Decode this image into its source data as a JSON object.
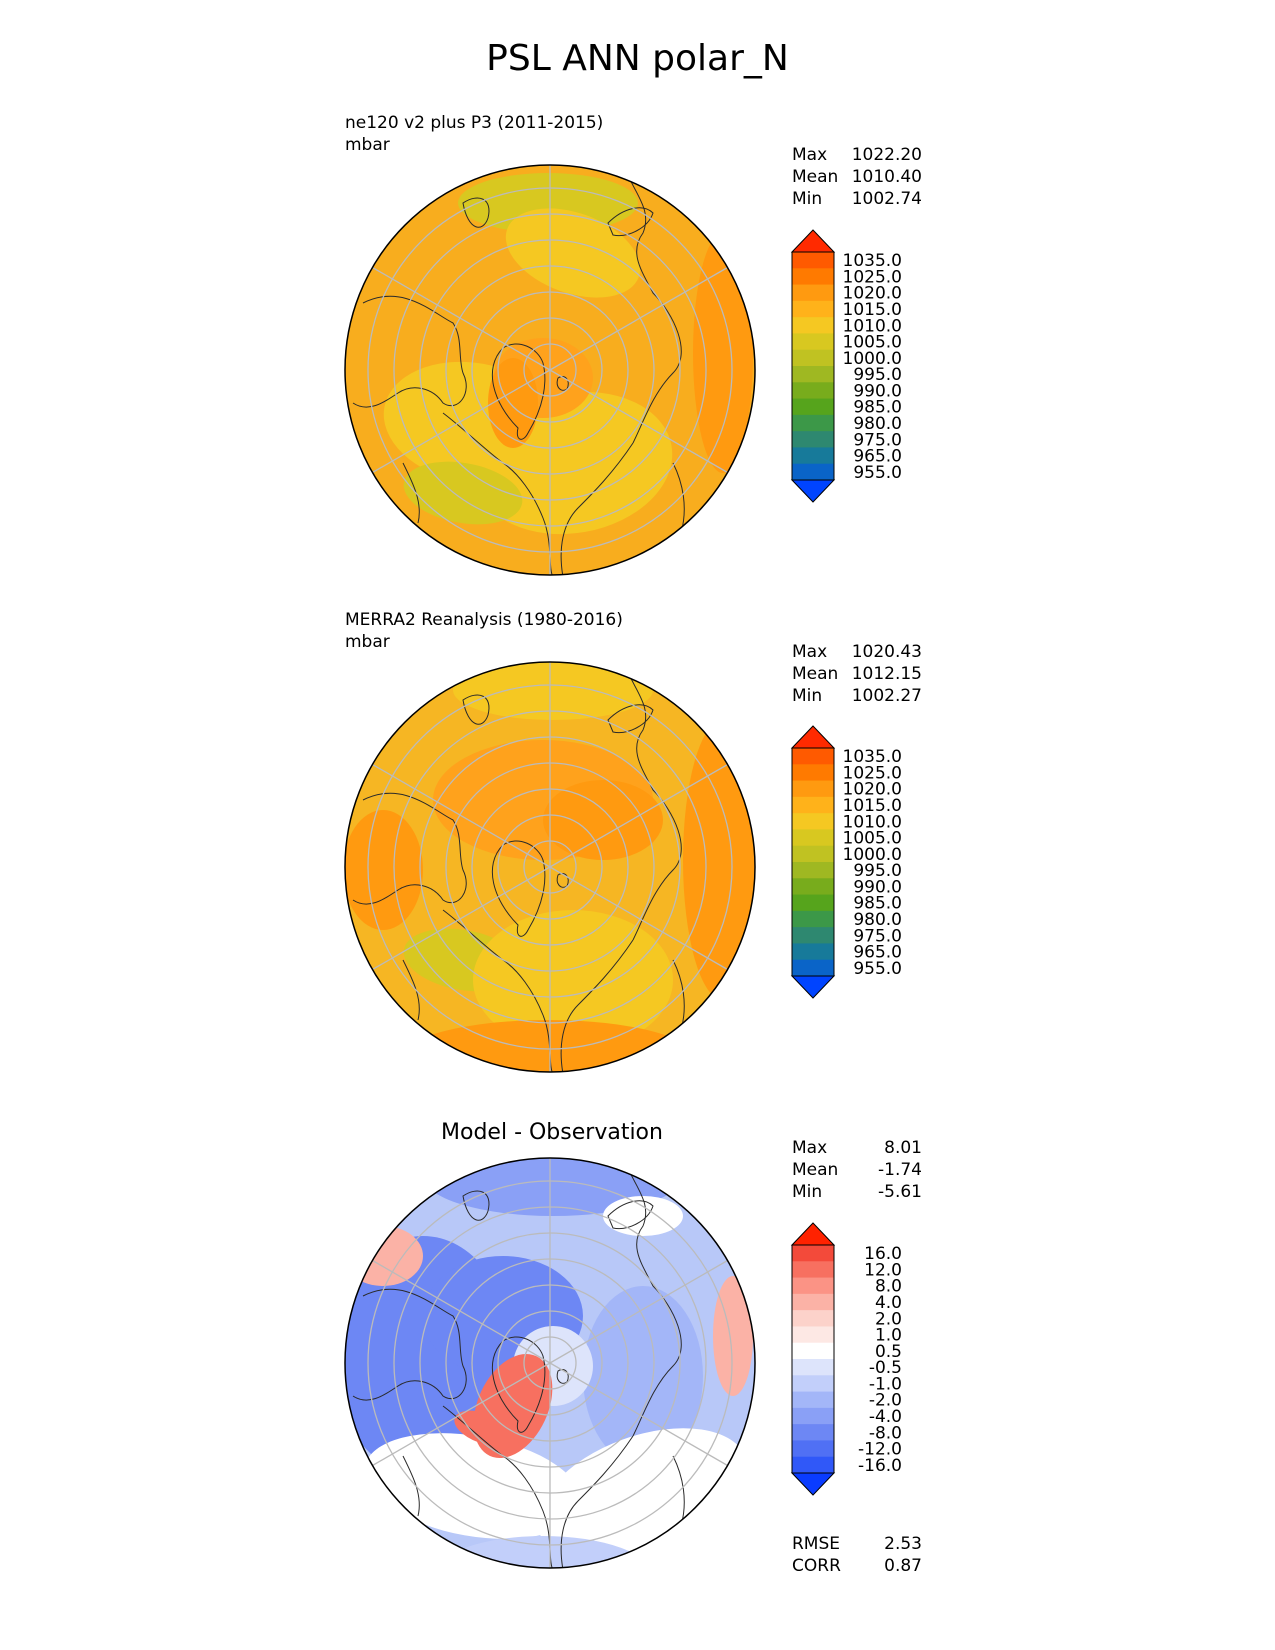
{
  "figure_title": "PSL ANN polar_N",
  "panels": [
    {
      "id": "model",
      "title_line1": "ne120 v2 plus P3 (2011-2015)",
      "title_line2": "mbar",
      "stats": [
        [
          "Max",
          "1022.20"
        ],
        [
          "Mean",
          "1010.40"
        ],
        [
          "Min",
          "1002.74"
        ]
      ],
      "colorbar": {
        "ticks": [
          "1035.0",
          "1025.0",
          "1020.0",
          "1015.0",
          "1010.0",
          "1005.0",
          "1000.0",
          "995.0",
          "990.0",
          "985.0",
          "980.0",
          "975.0",
          "965.0",
          "955.0"
        ],
        "colors": [
          "#ff2a00",
          "#ff5a00",
          "#ff7a00",
          "#ff9a10",
          "#ffb21a",
          "#f5c822",
          "#d8c820",
          "#c0c222",
          "#9fb822",
          "#78ac1c",
          "#56a41c",
          "#3c9848",
          "#2e8870",
          "#177a9a",
          "#0a64c8",
          "#0044ff"
        ]
      },
      "map_note": "North polar stereographic map, mostly orange/yellow shading"
    },
    {
      "id": "obs",
      "title_line1": "MERRA2 Reanalysis (1980-2016)",
      "title_line2": "mbar",
      "stats": [
        [
          "Max",
          "1020.43"
        ],
        [
          "Mean",
          "1012.15"
        ],
        [
          "Min",
          "1002.27"
        ]
      ],
      "colorbar": {
        "ticks": [
          "1035.0",
          "1025.0",
          "1020.0",
          "1015.0",
          "1010.0",
          "1005.0",
          "1000.0",
          "995.0",
          "990.0",
          "985.0",
          "980.0",
          "975.0",
          "965.0",
          "955.0"
        ],
        "colors": [
          "#ff2a00",
          "#ff5a00",
          "#ff7a00",
          "#ff9a10",
          "#ffb21a",
          "#f5c822",
          "#d8c820",
          "#c0c222",
          "#9fb822",
          "#78ac1c",
          "#56a41c",
          "#3c9848",
          "#2e8870",
          "#177a9a",
          "#0a64c8",
          "#0044ff"
        ]
      }
    },
    {
      "id": "diff",
      "title": "Model - Observation",
      "stats": [
        [
          "Max",
          "8.01"
        ],
        [
          "Mean",
          "-1.74"
        ],
        [
          "Min",
          "-5.61"
        ]
      ],
      "colorbar": {
        "ticks": [
          "16.0",
          "12.0",
          "8.0",
          "4.0",
          "2.0",
          "1.0",
          "0.5",
          "-0.5",
          "-1.0",
          "-2.0",
          "-4.0",
          "-8.0",
          "-12.0",
          "-16.0"
        ],
        "colors": [
          "#ff2200",
          "#f34a3a",
          "#f77060",
          "#fb9385",
          "#fbb2a6",
          "#fcd2ca",
          "#fde8e4",
          "#ffffff",
          "#dde4fb",
          "#c2cffa",
          "#a3b6f8",
          "#8aa0f6",
          "#6d87f4",
          "#5070f4",
          "#3058f8",
          "#0a3cff"
        ]
      },
      "bottom_stats": [
        [
          "RMSE",
          "2.53"
        ],
        [
          "CORR",
          "0.87"
        ]
      ]
    }
  ],
  "colors": {
    "model_base": "#f8ad1e",
    "obs_base": "#f6b623",
    "diff_base": "#b8c8f8",
    "grid": "#bbbbbb",
    "coast": "#2a2a2a"
  }
}
